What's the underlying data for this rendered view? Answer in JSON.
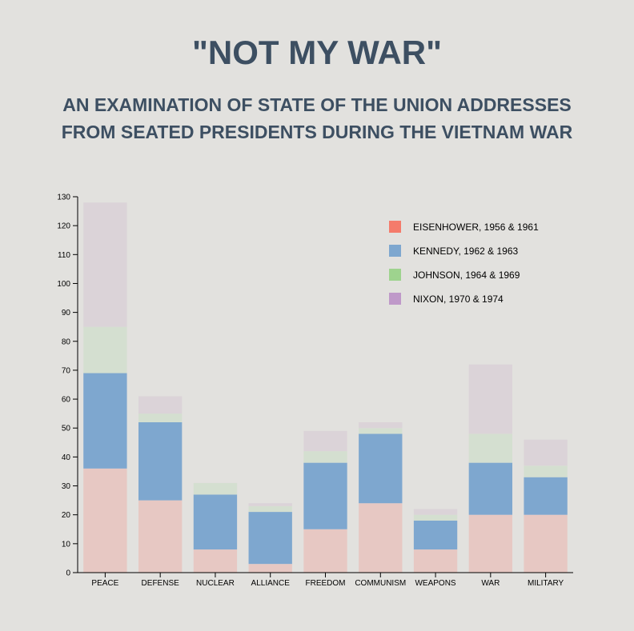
{
  "header": {
    "title": "\"NOT MY WAR\"",
    "subtitle_line1": "AN EXAMINATION OF STATE OF THE UNION ADDRESSES",
    "subtitle_line2": "FROM SEATED PRESIDENTS DURING THE VIETNAM WAR"
  },
  "chart_data": {
    "type": "bar",
    "stacked": true,
    "categories": [
      "PEACE",
      "DEFENSE",
      "NUCLEAR",
      "ALLIANCE",
      "FREEDOM",
      "COMMUNISM",
      "WEAPONS",
      "WAR",
      "MILITARY"
    ],
    "series": [
      {
        "name": "EISENHOWER, 1956 & 1961",
        "legend_color": "#f47b6b",
        "bar_color": "#e7c8c3",
        "values": [
          36,
          25,
          8,
          3,
          15,
          24,
          8,
          20,
          20
        ]
      },
      {
        "name": "KENNEDY, 1962 & 1963",
        "legend_color": "#7ea7cf",
        "bar_color": "#7ea7cf",
        "values": [
          33,
          27,
          19,
          18,
          23,
          24,
          10,
          18,
          13
        ]
      },
      {
        "name": "JOHNSON, 1964 & 1969",
        "legend_color": "#9ed38e",
        "bar_color": "#d4dfd0",
        "values": [
          16,
          3,
          4,
          2,
          4,
          2,
          2,
          10,
          4
        ]
      },
      {
        "name": "NIXON, 1970 & 1974",
        "legend_color": "#bf99c9",
        "bar_color": "#dbd3d8",
        "values": [
          43,
          6,
          0,
          1,
          7,
          2,
          2,
          24,
          9
        ]
      }
    ],
    "yticks": [
      0,
      10,
      20,
      30,
      40,
      50,
      60,
      70,
      80,
      90,
      100,
      110,
      120,
      130
    ],
    "ylim": [
      0,
      130
    ],
    "grid": false,
    "legend_position": "top-right"
  }
}
